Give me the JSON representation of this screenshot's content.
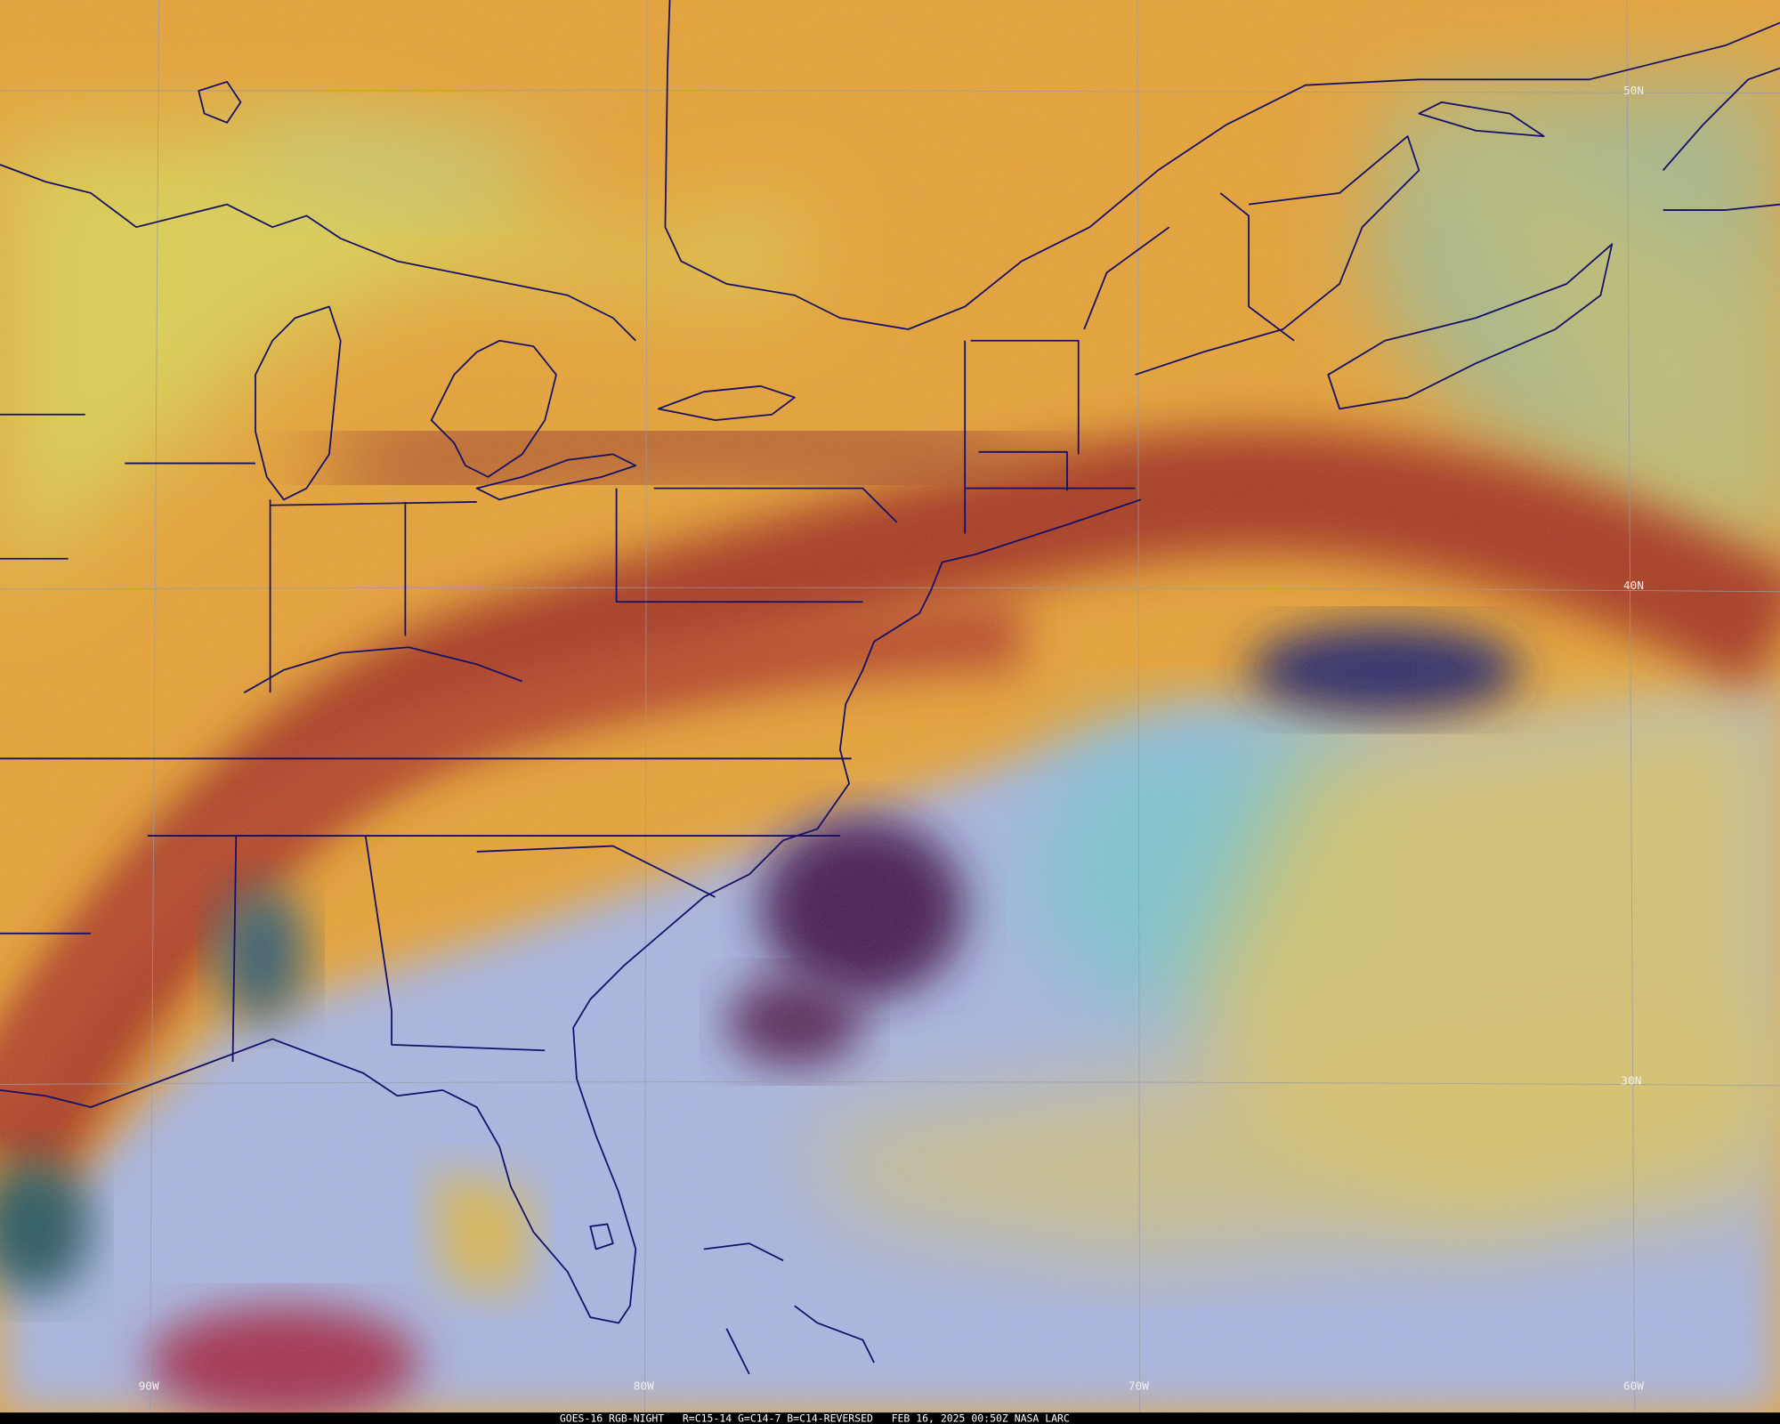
{
  "map": {
    "lat_labels": [
      "50N",
      "40N",
      "30N"
    ],
    "lon_labels": [
      "90W",
      "80W",
      "70W",
      "60W"
    ],
    "footer": "GOES-16 RGB-NIGHT   R=C15-14 G=C14-7 B=C14-REVERSED   FEB 16, 2025 00:50Z NASA LARC"
  }
}
